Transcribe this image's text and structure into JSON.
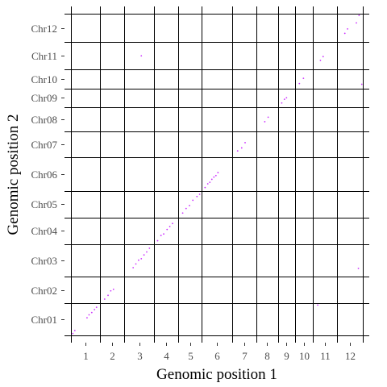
{
  "chart_data": {
    "type": "scatter",
    "title": "",
    "xlabel": "Genomic position 1",
    "ylabel": "Genomic position 2",
    "x_ticks": [
      "1",
      "2",
      "3",
      "4",
      "5",
      "6",
      "7",
      "8",
      "9",
      "10",
      "11",
      "12"
    ],
    "y_ticks": [
      "Chr01",
      "Chr02",
      "Chr03",
      "Chr04",
      "Chr05",
      "Chr06",
      "Chr07",
      "Chr08",
      "Chr09",
      "Chr10",
      "Chr11",
      "Chr12"
    ],
    "x_boundaries": [
      0,
      43.3,
      79.3,
      122.3,
      158.3,
      193.3,
      238.3,
      273.3,
      305.3,
      330.3,
      356.3,
      392.3,
      430
    ],
    "y_boundaries": [
      0,
      43.3,
      79.3,
      122.3,
      158.3,
      193.3,
      238.3,
      273.3,
      305.3,
      330.3,
      356.3,
      392.3,
      430
    ],
    "xlim": [
      -9.2,
      440
    ],
    "ylim": [
      -9.2,
      440
    ],
    "grid": true,
    "legend": "none",
    "point_color": "#cc33ff",
    "series": [
      {
        "points": [
          [
            3,
            3
          ],
          [
            6,
            7
          ],
          [
            24,
            24
          ],
          [
            27,
            28
          ],
          [
            31,
            31
          ],
          [
            35,
            35
          ],
          [
            38,
            38
          ],
          [
            50,
            49
          ],
          [
            55,
            54
          ],
          [
            59,
            60
          ],
          [
            63,
            62
          ],
          [
            92,
            91
          ],
          [
            96,
            96
          ],
          [
            100,
            101
          ],
          [
            104,
            103
          ],
          [
            108,
            108
          ],
          [
            112,
            112
          ],
          [
            116,
            117
          ],
          [
            128,
            127
          ],
          [
            133,
            134
          ],
          [
            137,
            136
          ],
          [
            142,
            142
          ],
          [
            146,
            146
          ],
          [
            150,
            150
          ],
          [
            165,
            164
          ],
          [
            170,
            170
          ],
          [
            175,
            174
          ],
          [
            180,
            181
          ],
          [
            186,
            186
          ],
          [
            190,
            189
          ],
          [
            198,
            198
          ],
          [
            202,
            203
          ],
          [
            205,
            205
          ],
          [
            208,
            209
          ],
          [
            211,
            212
          ],
          [
            214,
            214
          ],
          [
            217,
            218
          ],
          [
            246,
            247
          ],
          [
            252,
            251
          ],
          [
            257,
            258
          ],
          [
            286,
            286
          ],
          [
            291,
            292
          ],
          [
            311,
            311
          ],
          [
            315,
            316
          ],
          [
            318,
            318
          ],
          [
            337,
            337
          ],
          [
            343,
            344
          ],
          [
            368,
            368
          ],
          [
            372,
            373
          ],
          [
            404,
            404
          ],
          [
            408,
            410
          ],
          [
            421,
            418
          ],
          [
            425,
            428
          ],
          [
            364,
            41
          ],
          [
            424,
            90
          ],
          [
            104,
            374
          ],
          [
            429,
            336
          ]
        ]
      }
    ]
  }
}
